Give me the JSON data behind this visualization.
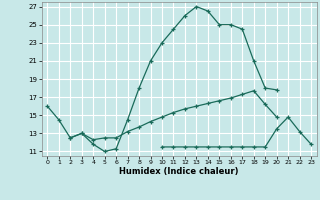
{
  "background_color": "#c8e8e8",
  "grid_color": "#ffffff",
  "line_color": "#1a6b5a",
  "xlabel": "Humidex (Indice chaleur)",
  "xlim": [
    -0.5,
    23.5
  ],
  "ylim": [
    10.5,
    27.5
  ],
  "xticks": [
    0,
    1,
    2,
    3,
    4,
    5,
    6,
    7,
    8,
    9,
    10,
    11,
    12,
    13,
    14,
    15,
    16,
    17,
    18,
    19,
    20,
    21,
    22,
    23
  ],
  "yticks": [
    11,
    13,
    15,
    17,
    19,
    21,
    23,
    25,
    27
  ],
  "series": [
    {
      "x": [
        0,
        1,
        2,
        3,
        4,
        5,
        6,
        7,
        8,
        9,
        10,
        11,
        12,
        13,
        14,
        15,
        16,
        17,
        18,
        19,
        20
      ],
      "y": [
        16,
        14.5,
        12.5,
        13.0,
        11.8,
        11.0,
        11.3,
        14.5,
        18,
        21,
        23,
        24.5,
        26,
        27.0,
        26.5,
        25.0,
        25.0,
        24.5,
        21.0,
        18.0,
        17.8
      ]
    },
    {
      "x": [
        2,
        3,
        4,
        5,
        6,
        7,
        8,
        9,
        10,
        11,
        12,
        13,
        14,
        15,
        16,
        17,
        18,
        19,
        20
      ],
      "y": [
        12.5,
        13.0,
        12.3,
        12.5,
        12.5,
        13.2,
        13.7,
        14.3,
        14.8,
        15.3,
        15.7,
        16.0,
        16.3,
        16.6,
        16.9,
        17.3,
        17.7,
        16.2,
        14.8
      ]
    },
    {
      "x": [
        10,
        11,
        12,
        13,
        14,
        15,
        16,
        17,
        18,
        19,
        20,
        21,
        22,
        23
      ],
      "y": [
        11.5,
        11.5,
        11.5,
        11.5,
        11.5,
        11.5,
        11.5,
        11.5,
        11.5,
        11.5,
        13.5,
        14.8,
        13.2,
        11.8
      ]
    }
  ]
}
